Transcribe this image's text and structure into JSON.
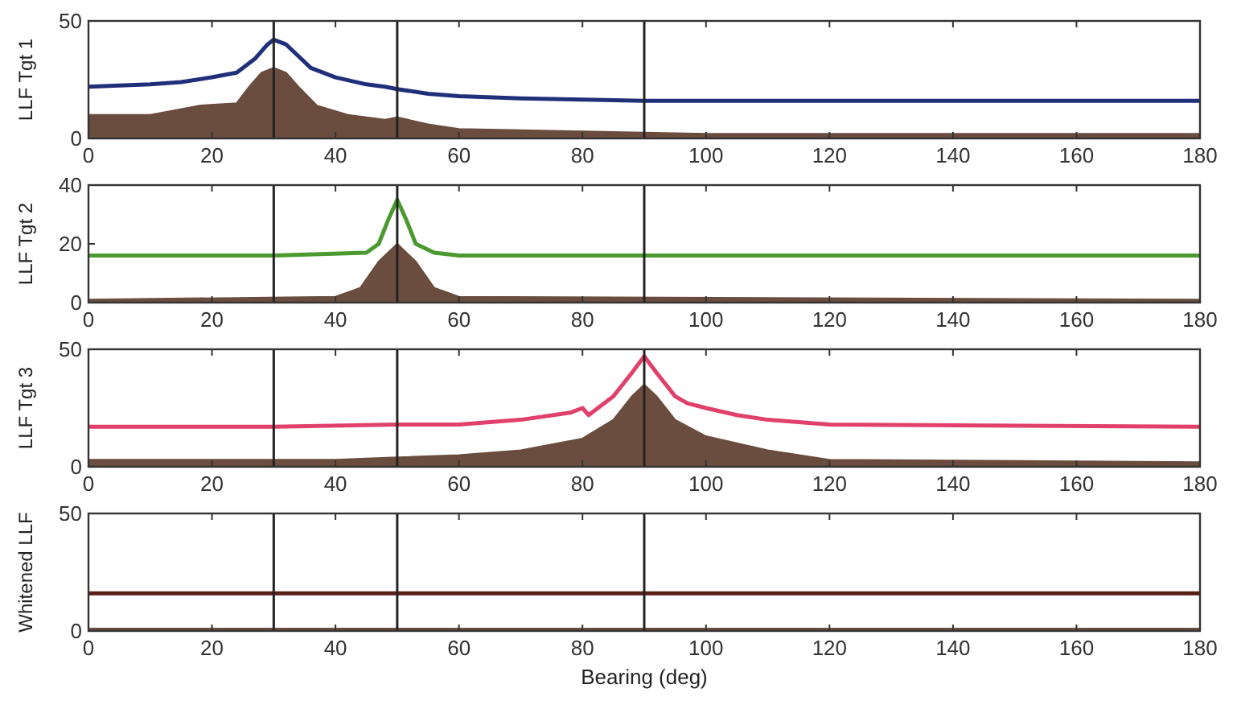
{
  "chart_data": [
    {
      "type": "line",
      "ylabel": "LLF Tgt 1",
      "xlim": [
        0,
        180
      ],
      "xticks": [
        0,
        20,
        40,
        60,
        80,
        100,
        120,
        140,
        160,
        180
      ],
      "ylim": [
        0,
        50
      ],
      "yticks": [
        0,
        50
      ],
      "ref_lines": [
        {
          "axis": "x",
          "value": 30,
          "color": "#222222"
        },
        {
          "axis": "x",
          "value": 50,
          "color": "#222222"
        },
        {
          "axis": "x",
          "value": 90,
          "color": "#222222"
        }
      ],
      "series": [
        {
          "type": "area",
          "color": "#5a3a2a",
          "x": [
            0,
            10,
            18,
            24,
            26,
            28,
            30,
            32,
            34,
            37,
            42,
            48,
            50,
            55,
            60,
            80,
            100,
            180
          ],
          "values": [
            10,
            10,
            14,
            15,
            22,
            28,
            30,
            28,
            22,
            14,
            10,
            8,
            9,
            6,
            4,
            3,
            2,
            2
          ]
        },
        {
          "color": "#1f2f7a",
          "x": [
            0,
            10,
            15,
            20,
            24,
            27,
            29,
            30,
            32,
            34,
            36,
            40,
            45,
            48,
            50,
            55,
            60,
            70,
            80,
            90,
            95,
            180
          ],
          "values": [
            22,
            23,
            24,
            26,
            28,
            34,
            40,
            42,
            40,
            35,
            30,
            26,
            23,
            22,
            21,
            19,
            18,
            17,
            16.5,
            16,
            16,
            16
          ]
        }
      ]
    },
    {
      "type": "line",
      "ylabel": "LLF Tgt 2",
      "xlim": [
        0,
        180
      ],
      "xticks": [
        0,
        20,
        40,
        60,
        80,
        100,
        120,
        140,
        160,
        180
      ],
      "ylim": [
        0,
        40
      ],
      "yticks": [
        0,
        20,
        40
      ],
      "ref_lines": [
        {
          "axis": "x",
          "value": 30,
          "color": "#222222"
        },
        {
          "axis": "x",
          "value": 50,
          "color": "#222222"
        },
        {
          "axis": "x",
          "value": 90,
          "color": "#222222"
        }
      ],
      "series": [
        {
          "type": "area",
          "color": "#5a3a2a",
          "x": [
            0,
            40,
            44,
            47,
            50,
            53,
            56,
            60,
            180
          ],
          "values": [
            1,
            2,
            5,
            14,
            20,
            14,
            5,
            2,
            1
          ]
        },
        {
          "color": "#4a9a30",
          "x": [
            0,
            30,
            45,
            47,
            48.5,
            50,
            51.5,
            53,
            56,
            60,
            180
          ],
          "values": [
            16,
            16,
            17,
            20,
            28,
            35,
            28,
            20,
            17,
            16,
            16
          ]
        }
      ]
    },
    {
      "type": "line",
      "ylabel": "LLF Tgt 3",
      "xlim": [
        0,
        180
      ],
      "xticks": [
        0,
        20,
        40,
        60,
        80,
        100,
        120,
        140,
        160,
        180
      ],
      "ylim": [
        0,
        50
      ],
      "yticks": [
        0,
        50
      ],
      "ref_lines": [
        {
          "axis": "x",
          "value": 30,
          "color": "#222222"
        },
        {
          "axis": "x",
          "value": 50,
          "color": "#222222"
        },
        {
          "axis": "x",
          "value": 90,
          "color": "#222222"
        }
      ],
      "series": [
        {
          "type": "area",
          "color": "#5a3a2a",
          "x": [
            0,
            40,
            50,
            60,
            70,
            80,
            85,
            88,
            90,
            92,
            95,
            100,
            110,
            120,
            180
          ],
          "values": [
            3,
            3,
            4,
            5,
            7,
            12,
            20,
            30,
            35,
            30,
            20,
            13,
            7,
            3,
            2
          ]
        },
        {
          "color": "#e0406a",
          "x": [
            0,
            30,
            50,
            60,
            70,
            78,
            80,
            81,
            85,
            88,
            90,
            92,
            95,
            97,
            100,
            105,
            110,
            115,
            120,
            180
          ],
          "values": [
            17,
            17,
            18,
            18,
            20,
            23,
            25,
            22,
            30,
            40,
            47,
            40,
            30,
            27,
            25,
            22,
            20,
            19,
            18,
            17
          ]
        }
      ]
    },
    {
      "type": "line",
      "ylabel": "Whitened LLF",
      "xlabel": "Bearing (deg)",
      "xlim": [
        0,
        180
      ],
      "xticks": [
        0,
        20,
        40,
        60,
        80,
        100,
        120,
        140,
        160,
        180
      ],
      "ylim": [
        0,
        50
      ],
      "yticks": [
        0,
        50
      ],
      "ref_lines": [
        {
          "axis": "x",
          "value": 30,
          "color": "#222222"
        },
        {
          "axis": "x",
          "value": 50,
          "color": "#222222"
        },
        {
          "axis": "x",
          "value": 90,
          "color": "#222222"
        }
      ],
      "series": [
        {
          "type": "area",
          "color": "#5a3a2a",
          "x": [
            0,
            180
          ],
          "values": [
            1,
            1
          ]
        },
        {
          "color": "#5a1e14",
          "x": [
            0,
            180
          ],
          "values": [
            16,
            16
          ]
        }
      ]
    }
  ]
}
